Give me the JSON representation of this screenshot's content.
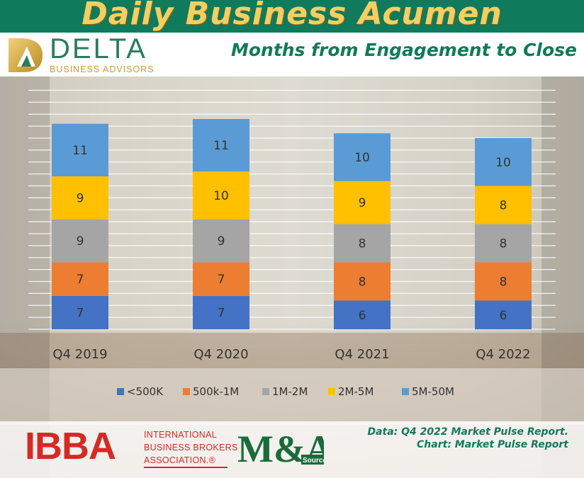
{
  "header": {
    "title": "Daily Business Acumen",
    "subtitle": "Months from Engagement to Close"
  },
  "logo": {
    "name": "DELTA",
    "tagline": "BUSINESS ADVISORS"
  },
  "chart_data": {
    "type": "bar",
    "stacked": true,
    "title": "",
    "xlabel": "",
    "ylabel": "",
    "categories": [
      "Q4 2019",
      "Q4 2020",
      "Q4 2021",
      "Q4 2022"
    ],
    "series": [
      {
        "name": "<500K",
        "color": "#4472c4",
        "values": [
          7,
          7,
          6,
          6
        ]
      },
      {
        "name": "500k-1M",
        "color": "#ed7d31",
        "values": [
          7,
          7,
          8,
          8
        ]
      },
      {
        "name": "1M-2M",
        "color": "#a5a5a5",
        "values": [
          9,
          9,
          8,
          8
        ]
      },
      {
        "name": "2M-5M",
        "color": "#ffc000",
        "values": [
          9,
          10,
          9,
          8
        ]
      },
      {
        "name": "5M-50M",
        "color": "#5b9bd5",
        "values": [
          11,
          11,
          10,
          10
        ]
      }
    ],
    "ylim": [
      0,
      50
    ],
    "grid": true,
    "data_labels": true,
    "legend": "bottom"
  },
  "footer": {
    "ibba_letters": "IBBA",
    "ibba_lines": [
      "INTERNATIONAL",
      "BUSINESS BROKERS",
      "ASSOCIATION.®"
    ],
    "ma_letters": "M&A",
    "ma_source": "Source",
    "source_lines": [
      "Data: Q4 2022 Market Pulse Report.",
      "Chart: Market Pulse Report"
    ]
  },
  "colors": {
    "brand_green": "#0f7a5c",
    "title_gold": "#f2cf63",
    "ibba_red": "#d42a25"
  }
}
